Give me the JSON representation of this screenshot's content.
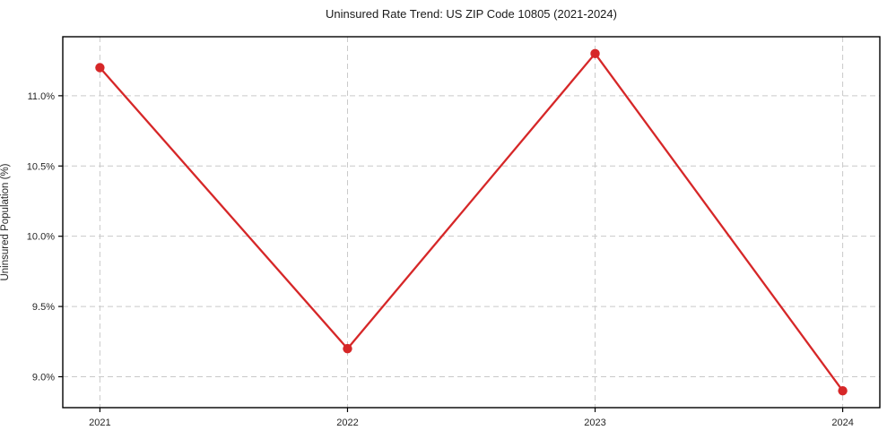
{
  "chart_data": {
    "type": "line",
    "title": "Uninsured Rate Trend: US ZIP Code 10805 (2021-2024)",
    "xlabel": "",
    "ylabel": "Uninsured Population (%)",
    "x": [
      2021,
      2022,
      2023,
      2024
    ],
    "values": [
      11.2,
      9.2,
      11.3,
      8.9
    ],
    "xtick_labels": [
      "2021",
      "2022",
      "2023",
      "2024"
    ],
    "yticks": [
      9.0,
      9.5,
      10.0,
      10.5,
      11.0
    ],
    "ytick_labels": [
      "9.0%",
      "9.5%",
      "10.0%",
      "10.5%",
      "11.0%"
    ],
    "xlim": [
      2020.85,
      2024.15
    ],
    "ylim": [
      8.78,
      11.42
    ],
    "grid": "dashed",
    "legend": "none",
    "colors": {
      "line": "#d62728",
      "marker": "#d62728",
      "grid": "#c9c9c9",
      "spine": "#000000",
      "tick_text": "#262626",
      "background": "#ffffff"
    }
  }
}
